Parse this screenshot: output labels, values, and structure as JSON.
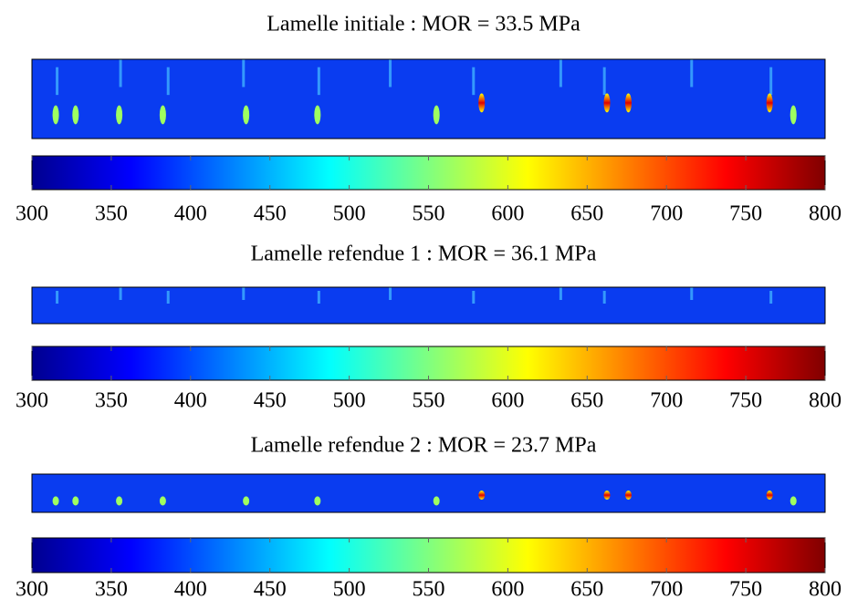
{
  "chart_data": [
    {
      "type": "heatmap",
      "title": "Lamelle initiale : MOR = 33.5 MPa",
      "colormap": "jet",
      "clim": [
        300,
        800
      ],
      "cticks": [
        300,
        350,
        400,
        450,
        500,
        550,
        600,
        650,
        700,
        750,
        800
      ]
    },
    {
      "type": "heatmap",
      "title": "Lamelle refendue 1 : MOR = 36.1 MPa",
      "colormap": "jet",
      "clim": [
        300,
        800
      ],
      "cticks": [
        300,
        350,
        400,
        450,
        500,
        550,
        600,
        650,
        700,
        750,
        800
      ]
    },
    {
      "type": "heatmap",
      "title": "Lamelle refendue 2 : MOR = 23.7 MPa",
      "colormap": "jet",
      "clim": [
        300,
        800
      ],
      "cticks": [
        300,
        350,
        400,
        450,
        500,
        550,
        600,
        650,
        700,
        750,
        800
      ]
    }
  ]
}
